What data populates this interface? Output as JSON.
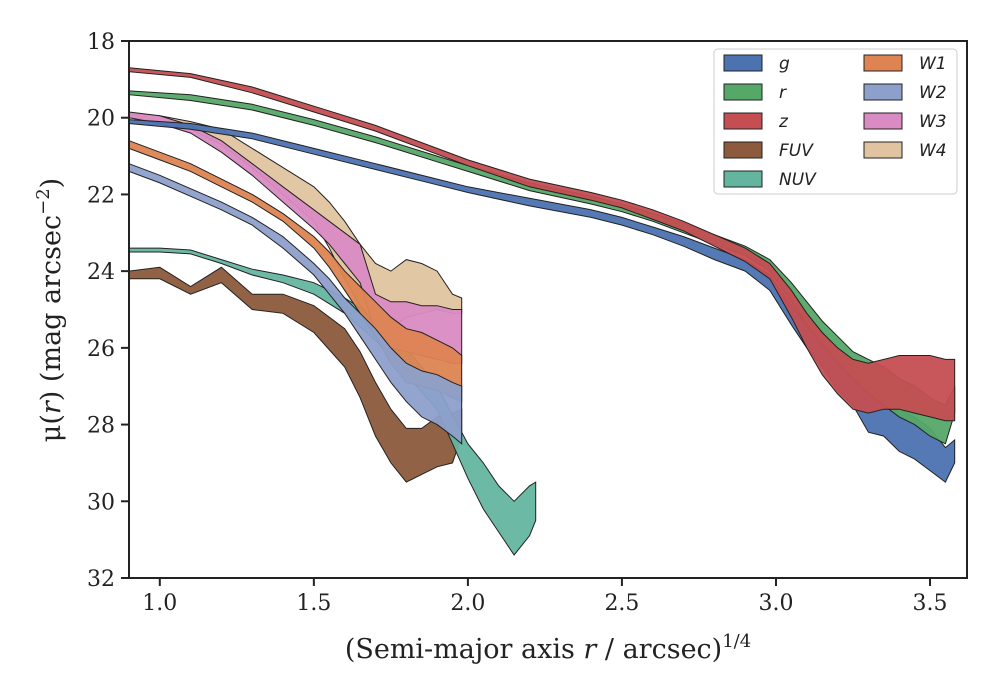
{
  "chart_data": {
    "type": "area",
    "xlabel_main": "(Semi-major axis ",
    "xlabel_var": "r",
    "xlabel_rest": " / arcsec)",
    "xlabel_sup": "1/4",
    "ylabel_main": "μ(",
    "ylabel_var": "r",
    "ylabel_rest": ") (mag arcsec",
    "ylabel_sup": "−2",
    "ylabel_close": ")",
    "xlim": [
      0.9,
      3.62
    ],
    "ylim": [
      32,
      18
    ],
    "y_inverted": true,
    "xticks": [
      1.0,
      1.5,
      2.0,
      2.5,
      3.0,
      3.5
    ],
    "xtick_labels": [
      "1.0",
      "1.5",
      "2.0",
      "2.5",
      "3.0",
      "3.5"
    ],
    "yticks": [
      18,
      20,
      22,
      24,
      26,
      28,
      30,
      32
    ],
    "ytick_labels": [
      "18",
      "20",
      "22",
      "24",
      "26",
      "28",
      "30",
      "32"
    ],
    "legend_position": "top-right",
    "legend_columns": 2,
    "grid": false,
    "series": [
      {
        "name": "g",
        "color": "#4c72b0",
        "x": [
          0.9,
          1.1,
          1.3,
          1.5,
          1.7,
          1.9,
          2.0,
          2.2,
          2.4,
          2.5,
          2.6,
          2.7,
          2.8,
          2.9,
          2.98,
          3.05,
          3.1,
          3.15,
          3.2,
          3.25,
          3.3,
          3.35,
          3.4,
          3.45,
          3.5,
          3.55,
          3.58
        ],
        "lo": [
          20.05,
          20.15,
          20.4,
          20.8,
          21.2,
          21.6,
          21.8,
          22.1,
          22.4,
          22.6,
          22.85,
          23.1,
          23.4,
          23.7,
          24.1,
          24.9,
          25.4,
          25.8,
          26.3,
          26.6,
          27.0,
          27.2,
          27.6,
          27.8,
          28.1,
          28.6,
          28.4
        ],
        "hi": [
          20.15,
          20.3,
          20.55,
          20.95,
          21.35,
          21.75,
          21.95,
          22.3,
          22.6,
          22.8,
          23.05,
          23.35,
          23.7,
          24.0,
          24.5,
          25.4,
          26.0,
          26.5,
          27.1,
          27.5,
          28.2,
          28.3,
          28.7,
          28.9,
          29.2,
          29.5,
          29.0
        ]
      },
      {
        "name": "r",
        "color": "#55a868",
        "x": [
          0.9,
          1.1,
          1.3,
          1.5,
          1.7,
          1.9,
          2.0,
          2.2,
          2.4,
          2.5,
          2.6,
          2.7,
          2.8,
          2.9,
          2.98,
          3.05,
          3.1,
          3.15,
          3.2,
          3.25,
          3.3,
          3.35,
          3.4,
          3.45,
          3.5,
          3.55,
          3.58
        ],
        "lo": [
          19.3,
          19.4,
          19.65,
          20.05,
          20.5,
          21.0,
          21.25,
          21.7,
          22.05,
          22.25,
          22.5,
          22.75,
          23.05,
          23.35,
          23.7,
          24.3,
          24.8,
          25.3,
          25.7,
          26.1,
          26.3,
          26.5,
          26.8,
          27.0,
          27.3,
          27.5,
          27.0
        ],
        "hi": [
          19.4,
          19.55,
          19.8,
          20.2,
          20.65,
          21.15,
          21.4,
          21.9,
          22.25,
          22.45,
          22.7,
          23.0,
          23.3,
          23.6,
          24.0,
          24.8,
          25.4,
          25.9,
          26.4,
          26.8,
          27.2,
          27.5,
          27.8,
          28.0,
          28.3,
          28.5,
          27.7
        ]
      },
      {
        "name": "z",
        "color": "#c44e52",
        "x": [
          0.9,
          1.1,
          1.3,
          1.5,
          1.7,
          1.9,
          2.0,
          2.2,
          2.4,
          2.5,
          2.6,
          2.7,
          2.8,
          2.9,
          2.98,
          3.05,
          3.1,
          3.15,
          3.2,
          3.25,
          3.3,
          3.35,
          3.4,
          3.45,
          3.5,
          3.55,
          3.58
        ],
        "lo": [
          18.7,
          18.85,
          19.2,
          19.7,
          20.2,
          20.8,
          21.1,
          21.6,
          21.95,
          22.15,
          22.4,
          22.7,
          23.05,
          23.4,
          23.8,
          24.5,
          25.1,
          25.6,
          26.0,
          26.3,
          26.4,
          26.3,
          26.2,
          26.2,
          26.2,
          26.3,
          26.3
        ],
        "hi": [
          18.8,
          18.95,
          19.35,
          19.85,
          20.35,
          20.95,
          21.25,
          21.8,
          22.15,
          22.35,
          22.65,
          22.95,
          23.35,
          23.75,
          24.2,
          25.2,
          26.0,
          26.7,
          27.2,
          27.6,
          27.7,
          27.6,
          27.6,
          27.7,
          27.8,
          27.9,
          27.9
        ]
      },
      {
        "name": "FUV",
        "color": "#8c5a3c",
        "x": [
          0.9,
          1.0,
          1.1,
          1.2,
          1.3,
          1.4,
          1.5,
          1.6,
          1.65,
          1.7,
          1.75,
          1.8,
          1.85,
          1.9,
          1.95,
          1.98
        ],
        "lo": [
          24.0,
          23.9,
          24.4,
          23.9,
          24.6,
          24.6,
          24.9,
          25.5,
          26.1,
          26.9,
          27.6,
          28.1,
          28.1,
          27.8,
          27.7,
          27.6
        ],
        "hi": [
          24.2,
          24.2,
          24.6,
          24.3,
          25.0,
          25.1,
          25.6,
          26.5,
          27.3,
          28.3,
          29.0,
          29.5,
          29.3,
          29.1,
          29.0,
          28.3
        ]
      },
      {
        "name": "NUV",
        "color": "#64b5a0",
        "x": [
          0.9,
          1.0,
          1.1,
          1.2,
          1.3,
          1.4,
          1.5,
          1.6,
          1.7,
          1.8,
          1.9,
          2.0,
          2.05,
          2.1,
          2.15,
          2.2,
          2.22
        ],
        "lo": [
          23.4,
          23.4,
          23.45,
          23.7,
          23.95,
          24.1,
          24.3,
          24.7,
          25.2,
          26.0,
          27.0,
          28.5,
          29.0,
          29.6,
          30.0,
          29.6,
          29.5
        ],
        "hi": [
          23.5,
          23.5,
          23.55,
          23.8,
          24.1,
          24.3,
          24.6,
          25.1,
          25.8,
          26.7,
          27.6,
          29.4,
          30.2,
          30.8,
          31.4,
          30.9,
          30.5
        ]
      },
      {
        "name": "W1",
        "color": "#dd8452",
        "x": [
          0.9,
          1.0,
          1.1,
          1.2,
          1.3,
          1.4,
          1.5,
          1.55,
          1.6,
          1.65,
          1.7,
          1.75,
          1.8,
          1.85,
          1.9,
          1.95,
          1.98
        ],
        "lo": [
          20.6,
          20.9,
          21.2,
          21.6,
          22.0,
          22.5,
          23.1,
          23.5,
          24.0,
          24.4,
          24.8,
          25.2,
          25.5,
          25.6,
          25.8,
          26.0,
          26.2
        ],
        "hi": [
          20.8,
          21.1,
          21.4,
          21.8,
          22.2,
          22.7,
          23.4,
          23.9,
          24.5,
          25.1,
          25.7,
          26.4,
          26.9,
          27.0,
          27.1,
          27.3,
          27.4
        ]
      },
      {
        "name": "W2",
        "color": "#8da0cb",
        "x": [
          0.9,
          1.0,
          1.1,
          1.2,
          1.3,
          1.4,
          1.5,
          1.55,
          1.6,
          1.65,
          1.7,
          1.75,
          1.8,
          1.85,
          1.9,
          1.95,
          1.98
        ],
        "lo": [
          21.2,
          21.5,
          21.85,
          22.2,
          22.6,
          23.1,
          23.8,
          24.2,
          24.7,
          25.1,
          25.5,
          26.0,
          26.4,
          26.6,
          26.7,
          26.9,
          27.0
        ],
        "hi": [
          21.4,
          21.7,
          22.05,
          22.4,
          22.8,
          23.4,
          24.1,
          24.6,
          25.1,
          25.7,
          26.3,
          26.9,
          27.4,
          27.8,
          28.0,
          28.3,
          28.5
        ]
      },
      {
        "name": "W3",
        "color": "#da8bc3",
        "x": [
          0.9,
          1.0,
          1.1,
          1.2,
          1.3,
          1.4,
          1.5,
          1.55,
          1.6,
          1.65,
          1.7,
          1.75,
          1.8,
          1.85,
          1.9,
          1.95,
          1.98
        ],
        "lo": [
          19.85,
          19.95,
          20.2,
          20.6,
          21.2,
          21.8,
          22.4,
          22.7,
          23.0,
          23.3,
          24.6,
          24.8,
          24.8,
          24.9,
          24.9,
          25.0,
          25.0
        ],
        "hi": [
          20.0,
          20.15,
          20.4,
          20.9,
          21.5,
          22.2,
          22.9,
          23.3,
          23.8,
          24.3,
          25.6,
          26.0,
          26.1,
          26.2,
          26.3,
          26.4,
          26.4
        ]
      },
      {
        "name": "W4",
        "color": "#dfc49f",
        "x": [
          0.9,
          1.0,
          1.1,
          1.2,
          1.3,
          1.4,
          1.5,
          1.55,
          1.6,
          1.65,
          1.7,
          1.75,
          1.8,
          1.85,
          1.9,
          1.95,
          1.98
        ],
        "lo": [
          19.9,
          19.95,
          20.1,
          20.3,
          20.8,
          21.3,
          21.8,
          22.2,
          22.7,
          23.3,
          23.8,
          24.0,
          23.7,
          23.8,
          24.0,
          24.6,
          24.7
        ],
        "hi": [
          20.0,
          20.1,
          20.3,
          20.7,
          21.3,
          22.0,
          22.7,
          23.4,
          24.2,
          24.9,
          25.4,
          25.5,
          25.2,
          25.1,
          25.0,
          25.1,
          25.1
        ]
      }
    ]
  }
}
